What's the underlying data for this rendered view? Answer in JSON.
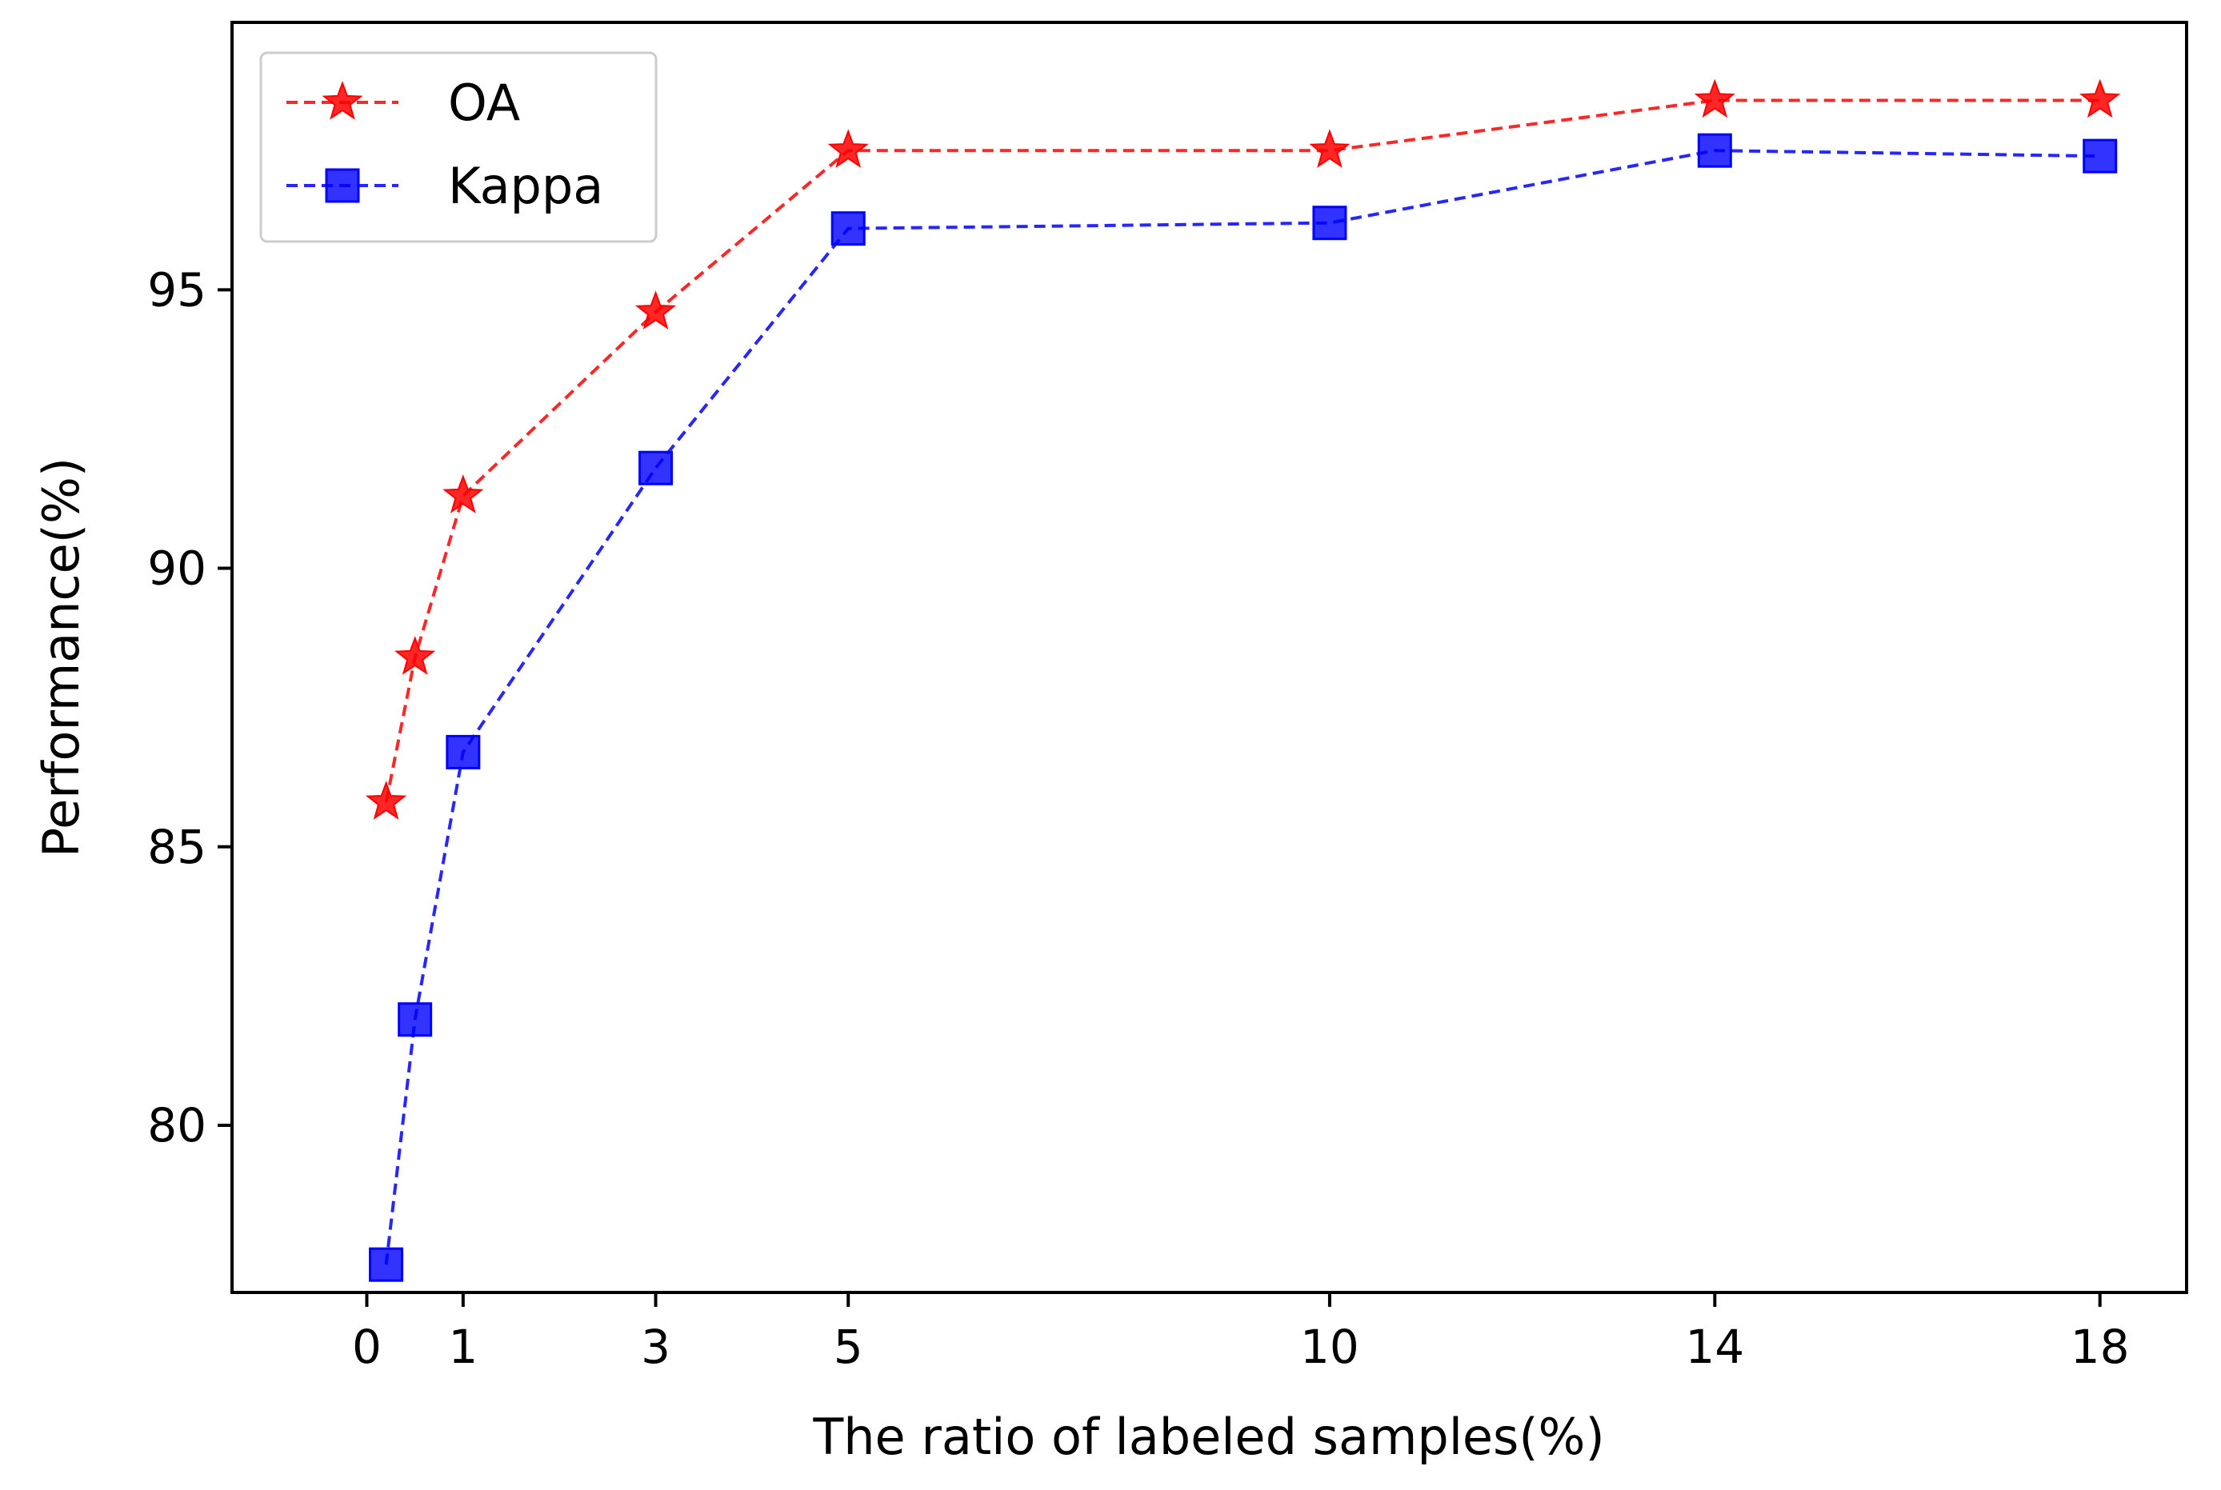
{
  "chart_data": {
    "type": "line",
    "title": "",
    "xlabel": "The ratio of labeled samples(%)",
    "ylabel": "Performance(%)",
    "xlim": [
      -1.4,
      18.9
    ],
    "ylim": [
      77.0,
      99.8
    ],
    "xticks": [
      0,
      1,
      3,
      5,
      10,
      14,
      18
    ],
    "xtick_labels": [
      "0",
      "1",
      "3",
      "5",
      "10",
      "14",
      "18"
    ],
    "yticks": [
      80,
      85,
      90,
      95
    ],
    "ytick_labels": [
      "80",
      "85",
      "90",
      "95"
    ],
    "grid": false,
    "legend_position": "top-left",
    "series": [
      {
        "name": "OA",
        "color": "#ff0000",
        "marker": "star",
        "line_style": "dashed",
        "x": [
          0.2,
          0.5,
          1,
          3,
          5,
          10,
          14,
          18
        ],
        "y": [
          85.8,
          88.4,
          91.3,
          94.6,
          97.5,
          97.5,
          98.4,
          98.4
        ]
      },
      {
        "name": "Kappa",
        "color": "#0000ff",
        "marker": "square",
        "line_style": "dashed",
        "x": [
          0.2,
          0.5,
          1,
          3,
          5,
          10,
          14,
          18
        ],
        "y": [
          77.5,
          81.9,
          86.7,
          91.8,
          96.1,
          96.2,
          97.5,
          97.4
        ]
      }
    ]
  }
}
